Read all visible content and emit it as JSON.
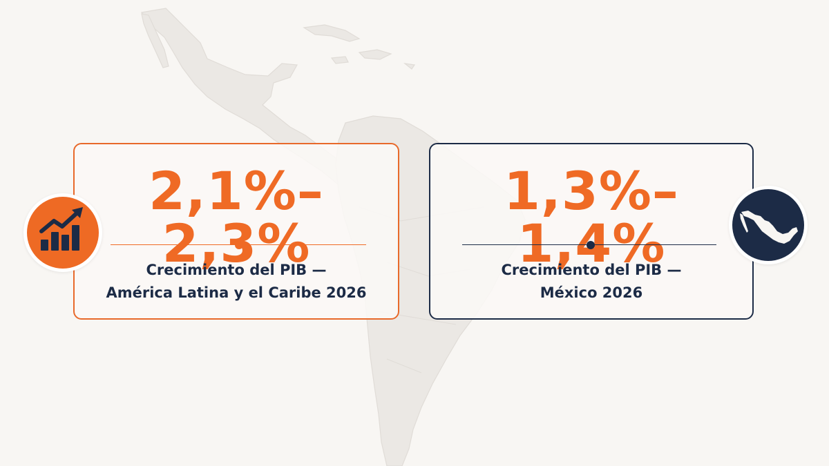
{
  "colors": {
    "accent": "#ee6a24",
    "navy": "#1c2b46",
    "background": "#f8f6f3",
    "map": "#e9e6e2"
  },
  "cards": [
    {
      "stat": "2,1%–2,3%",
      "label_line1": "Crecimiento del PIB —",
      "label_line2": "América Latina y el Caribe 2026",
      "icon": "growth-bar-chart-icon"
    },
    {
      "stat": "1,3%–1,4%",
      "label_line1": "Crecimiento del PIB —",
      "label_line2": "México 2026",
      "icon": "mexico-map-icon"
    }
  ]
}
